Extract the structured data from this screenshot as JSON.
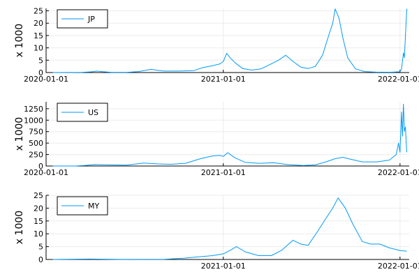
{
  "colors": {
    "series": "#009af9",
    "grid": "#ebebeb",
    "axis": "#000000",
    "background": "#ffffff"
  },
  "chart_data": [
    {
      "type": "line",
      "ylabel": "x 1000",
      "ylim": [
        0,
        26
      ],
      "yticks": [
        0,
        5,
        10,
        15,
        20,
        25
      ],
      "xlim": [
        "2020-01-01",
        "2022-01-20"
      ],
      "xticks": [
        "2020-01-01",
        "2021-01-01",
        "2022-01-01"
      ],
      "grid": true,
      "legend_position": "top-left",
      "series": [
        {
          "name": "JP",
          "points": [
            [
              "2020-01-15",
              0.0
            ],
            [
              "2020-02-15",
              0.02
            ],
            [
              "2020-03-15",
              0.05
            ],
            [
              "2020-04-05",
              0.3
            ],
            [
              "2020-04-15",
              0.6
            ],
            [
              "2020-04-25",
              0.4
            ],
            [
              "2020-05-15",
              0.05
            ],
            [
              "2020-06-15",
              0.05
            ],
            [
              "2020-07-10",
              0.4
            ],
            [
              "2020-07-25",
              0.9
            ],
            [
              "2020-08-05",
              1.3
            ],
            [
              "2020-08-15",
              1.0
            ],
            [
              "2020-09-01",
              0.6
            ],
            [
              "2020-10-01",
              0.6
            ],
            [
              "2020-11-01",
              0.8
            ],
            [
              "2020-11-20",
              2.0
            ],
            [
              "2020-12-10",
              2.8
            ],
            [
              "2020-12-25",
              3.5
            ],
            [
              "2021-01-01",
              4.5
            ],
            [
              "2021-01-08",
              7.8
            ],
            [
              "2021-01-15",
              6.0
            ],
            [
              "2021-01-25",
              4.0
            ],
            [
              "2021-02-10",
              1.6
            ],
            [
              "2021-03-01",
              1.0
            ],
            [
              "2021-03-20",
              1.5
            ],
            [
              "2021-04-10",
              3.5
            ],
            [
              "2021-04-25",
              5.0
            ],
            [
              "2021-05-10",
              7.0
            ],
            [
              "2021-05-25",
              4.5
            ],
            [
              "2021-06-10",
              2.2
            ],
            [
              "2021-06-25",
              1.6
            ],
            [
              "2021-07-10",
              2.5
            ],
            [
              "2021-07-25",
              7.0
            ],
            [
              "2021-08-05",
              14.0
            ],
            [
              "2021-08-15",
              20.0
            ],
            [
              "2021-08-20",
              25.8
            ],
            [
              "2021-08-28",
              22.0
            ],
            [
              "2021-09-05",
              14.0
            ],
            [
              "2021-09-15",
              6.0
            ],
            [
              "2021-10-01",
              1.5
            ],
            [
              "2021-10-20",
              0.4
            ],
            [
              "2021-11-15",
              0.15
            ],
            [
              "2021-12-15",
              0.15
            ],
            [
              "2021-12-31",
              0.3
            ],
            [
              "2022-01-04",
              1.2
            ],
            [
              "2022-01-08",
              8.0
            ],
            [
              "2022-01-10",
              6.0
            ],
            [
              "2022-01-13",
              18.0
            ],
            [
              "2022-01-15",
              25.8
            ]
          ]
        }
      ]
    },
    {
      "type": "line",
      "ylabel": "x 1000",
      "ylim": [
        0,
        1400
      ],
      "yticks": [
        0,
        250,
        500,
        750,
        1000,
        1250
      ],
      "xlim": [
        "2020-01-01",
        "2022-01-20"
      ],
      "xticks": [
        "2020-01-01",
        "2021-01-01",
        "2022-01-01"
      ],
      "grid": true,
      "legend_position": "top-left",
      "series": [
        {
          "name": "US",
          "points": [
            [
              "2020-01-15",
              0
            ],
            [
              "2020-03-01",
              0
            ],
            [
              "2020-03-20",
              10
            ],
            [
              "2020-04-10",
              32
            ],
            [
              "2020-05-15",
              25
            ],
            [
              "2020-06-15",
              20
            ],
            [
              "2020-07-20",
              65
            ],
            [
              "2020-08-20",
              45
            ],
            [
              "2020-09-15",
              38
            ],
            [
              "2020-10-15",
              60
            ],
            [
              "2020-11-15",
              160
            ],
            [
              "2020-12-10",
              220
            ],
            [
              "2020-12-25",
              230
            ],
            [
              "2021-01-01",
              210
            ],
            [
              "2021-01-10",
              290
            ],
            [
              "2021-01-25",
              180
            ],
            [
              "2021-02-15",
              80
            ],
            [
              "2021-03-15",
              60
            ],
            [
              "2021-04-15",
              70
            ],
            [
              "2021-05-15",
              30
            ],
            [
              "2021-06-15",
              12
            ],
            [
              "2021-07-10",
              25
            ],
            [
              "2021-08-01",
              90
            ],
            [
              "2021-08-20",
              160
            ],
            [
              "2021-09-05",
              190
            ],
            [
              "2021-09-20",
              150
            ],
            [
              "2021-10-15",
              90
            ],
            [
              "2021-11-15",
              90
            ],
            [
              "2021-12-10",
              130
            ],
            [
              "2021-12-24",
              250
            ],
            [
              "2021-12-29",
              500
            ],
            [
              "2022-01-01",
              300
            ],
            [
              "2022-01-04",
              1180
            ],
            [
              "2022-01-06",
              650
            ],
            [
              "2022-01-08",
              1350
            ],
            [
              "2022-01-10",
              760
            ],
            [
              "2022-01-12",
              850
            ],
            [
              "2022-01-15",
              300
            ]
          ]
        }
      ]
    },
    {
      "type": "line",
      "ylabel": "x 1000",
      "ylim": [
        0,
        25
      ],
      "yticks": [
        0,
        5,
        10,
        15,
        20,
        25
      ],
      "xlim": [
        "2020-01-01",
        "2022-01-20"
      ],
      "xticks": [
        "2021-01-01",
        "2022-01-01"
      ],
      "grid": true,
      "legend_position": "top-left",
      "series": [
        {
          "name": "MY",
          "points": [
            [
              "2020-01-15",
              0
            ],
            [
              "2020-04-01",
              0.15
            ],
            [
              "2020-06-01",
              0.02
            ],
            [
              "2020-09-01",
              0.05
            ],
            [
              "2020-10-10",
              0.5
            ],
            [
              "2020-11-10",
              1.0
            ],
            [
              "2020-12-10",
              1.5
            ],
            [
              "2021-01-01",
              2.2
            ],
            [
              "2021-01-15",
              3.5
            ],
            [
              "2021-01-28",
              5.0
            ],
            [
              "2021-02-15",
              3.0
            ],
            [
              "2021-03-15",
              1.5
            ],
            [
              "2021-04-10",
              1.5
            ],
            [
              "2021-05-01",
              3.5
            ],
            [
              "2021-05-25",
              7.5
            ],
            [
              "2021-06-10",
              6.0
            ],
            [
              "2021-06-25",
              5.5
            ],
            [
              "2021-07-15",
              11.0
            ],
            [
              "2021-08-01",
              16.0
            ],
            [
              "2021-08-15",
              20.0
            ],
            [
              "2021-08-26",
              24.0
            ],
            [
              "2021-09-10",
              20.0
            ],
            [
              "2021-09-25",
              14.0
            ],
            [
              "2021-10-15",
              7.0
            ],
            [
              "2021-11-01",
              6.0
            ],
            [
              "2021-11-20",
              6.0
            ],
            [
              "2021-12-10",
              4.5
            ],
            [
              "2022-01-01",
              3.5
            ],
            [
              "2022-01-15",
              3.2
            ]
          ]
        }
      ]
    }
  ]
}
